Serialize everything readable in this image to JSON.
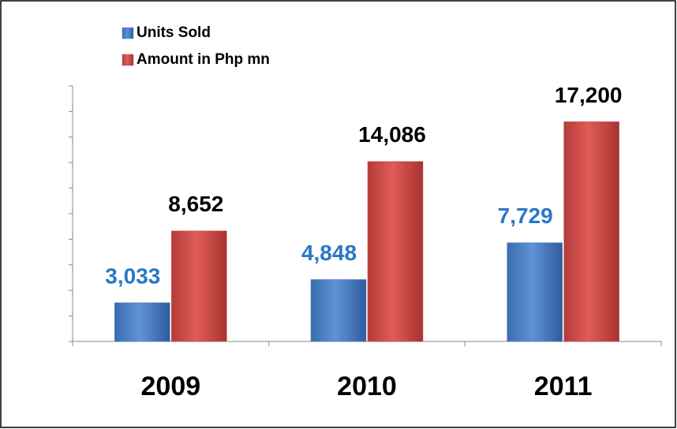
{
  "chart_data": {
    "type": "bar",
    "categories": [
      "2009",
      "2010",
      "2011"
    ],
    "series": [
      {
        "name": "Units Sold",
        "color": "#4f81bd",
        "label_color": "#2a78c6",
        "values": [
          3033,
          4848,
          7729
        ],
        "value_labels": [
          "3,033",
          "4,848",
          "7,729"
        ]
      },
      {
        "name": "Amount in Php mn",
        "color": "#c0504d",
        "label_color": "#000000",
        "values": [
          8652,
          14086,
          17200
        ],
        "value_labels": [
          "8,652",
          "14,086",
          "17,200"
        ]
      }
    ],
    "ylim": [
      0,
      20000
    ],
    "yticks": [
      0,
      2000,
      4000,
      6000,
      8000,
      10000,
      12000,
      14000,
      16000,
      18000,
      20000
    ],
    "legend": "top-left"
  }
}
